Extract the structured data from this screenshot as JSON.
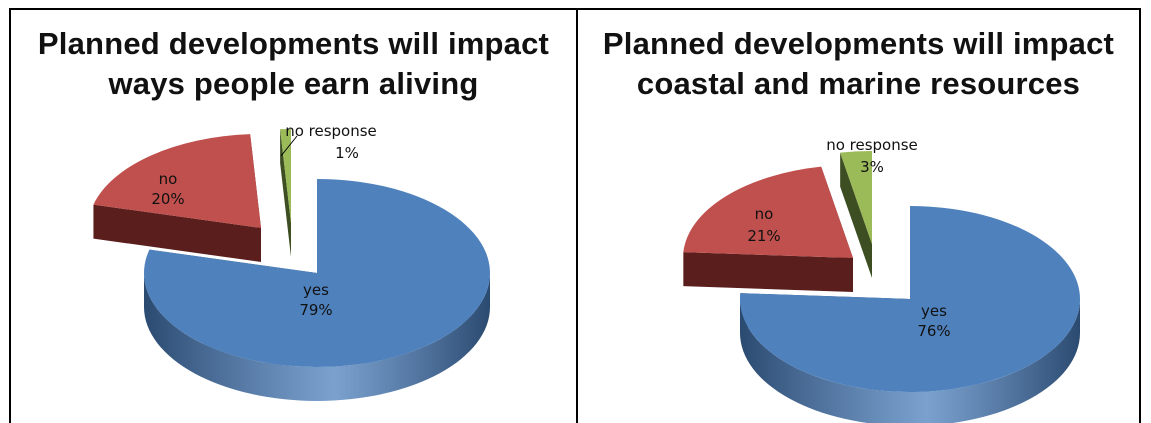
{
  "chart_data": [
    {
      "type": "pie",
      "title_lines": [
        "Planned developments will impact",
        "ways people earn aliving"
      ],
      "slices": [
        {
          "name": "yes",
          "value": 79,
          "label": "79%",
          "color": "#4f81bd",
          "dark": "#2b4a70"
        },
        {
          "name": "no",
          "value": 20,
          "label": "20%",
          "color": "#c0504d",
          "dark": "#5a1e1d"
        },
        {
          "name": "no response",
          "value": 1,
          "label": "1%",
          "color": "#9bbb59",
          "dark": "#3d4f22"
        }
      ]
    },
    {
      "type": "pie",
      "title_lines": [
        "Planned developments will impact",
        "coastal and marine resources"
      ],
      "slices": [
        {
          "name": "yes",
          "value": 76,
          "label": "76%",
          "color": "#4f81bd",
          "dark": "#2b4a70"
        },
        {
          "name": "no",
          "value": 21,
          "label": "21%",
          "color": "#c0504d",
          "dark": "#5a1e1d"
        },
        {
          "name": "no response",
          "value": 3,
          "label": "3%",
          "color": "#9bbb59",
          "dark": "#3d4f22"
        }
      ]
    }
  ]
}
